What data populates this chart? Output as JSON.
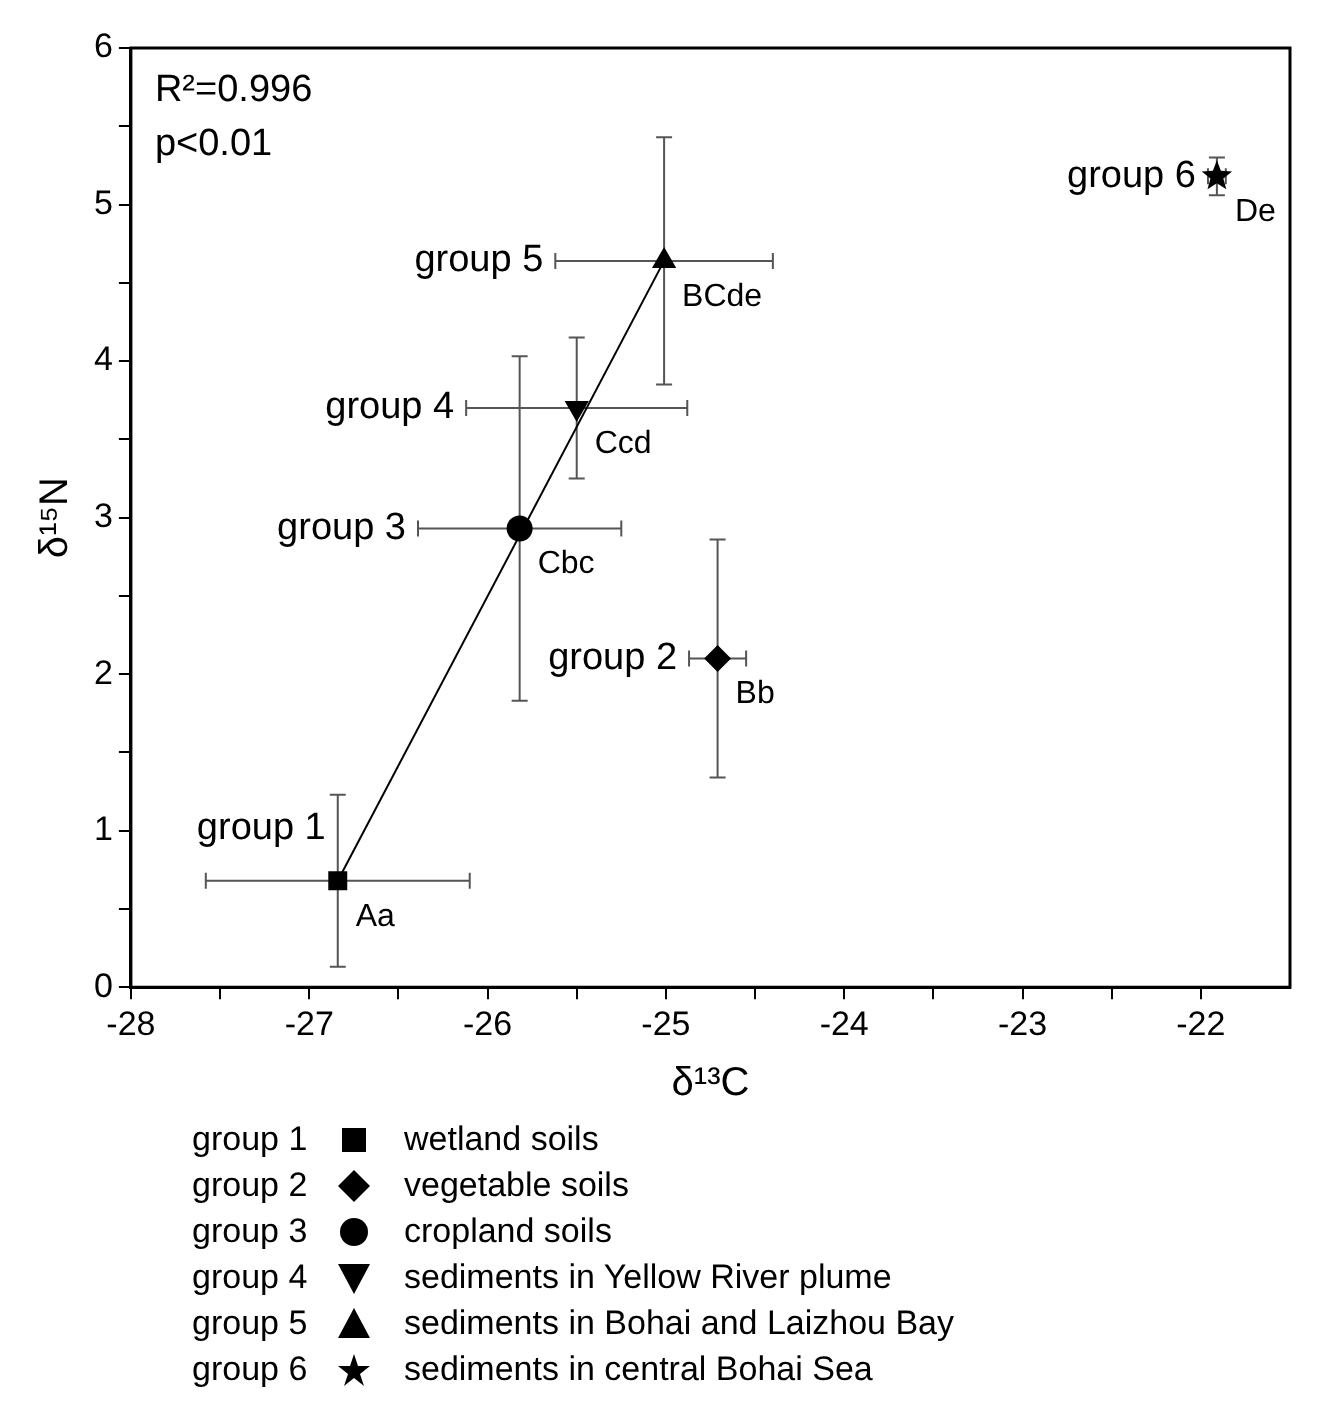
{
  "chart_data": {
    "type": "scatter",
    "xlabel": "δ¹³C",
    "ylabel": "δ¹⁵N",
    "xlim": [
      -28,
      -21.5
    ],
    "ylim": [
      0,
      6
    ],
    "xticks": [
      -28,
      {
        "value": -27.5,
        "label": null
      },
      -27,
      {
        "value": -26.5,
        "label": null
      },
      -26,
      {
        "value": -25.5,
        "label": null
      },
      -25,
      {
        "value": -24.5,
        "label": null
      },
      -24,
      {
        "value": -23.5,
        "label": null
      },
      -23,
      {
        "value": -22.5,
        "label": null
      },
      -22
    ],
    "yticks": [
      0,
      {
        "value": 0.5,
        "label": null
      },
      1,
      {
        "value": 1.5,
        "label": null
      },
      2,
      {
        "value": 2.5,
        "label": null
      },
      3,
      {
        "value": 3.5,
        "label": null
      },
      4,
      {
        "value": 4.5,
        "label": null
      },
      5,
      {
        "value": 5.5,
        "label": null
      },
      6
    ],
    "grid": false,
    "legend": "bottom",
    "series": [
      {
        "name": "group 1",
        "color": "#000000",
        "marker": "square",
        "x": [
          -26.84
        ],
        "values": [
          0.68
        ],
        "errors": [
          0.55
        ],
        "xerrors": [
          0.74
        ]
      },
      {
        "name": "group 2",
        "color": "#000000",
        "marker": "diamond",
        "x": [
          -24.71
        ],
        "values": [
          2.1
        ],
        "errors": [
          0.76
        ],
        "xerrors": [
          0.16
        ]
      },
      {
        "name": "group 3",
        "color": "#000000",
        "marker": "circle",
        "x": [
          -25.82
        ],
        "values": [
          2.93
        ],
        "errors": [
          1.1
        ],
        "xerrors": [
          0.57
        ]
      },
      {
        "name": "group 4",
        "color": "#000000",
        "marker": "triangle-down",
        "x": [
          -25.5
        ],
        "values": [
          3.7
        ],
        "errors": [
          0.45
        ],
        "xerrors": [
          0.62
        ]
      },
      {
        "name": "group 5",
        "color": "#000000",
        "marker": "triangle",
        "x": [
          -25.01
        ],
        "values": [
          4.64
        ],
        "errors": [
          0.79
        ],
        "xerrors": [
          0.61
        ]
      },
      {
        "name": "group 6",
        "color": "#000000",
        "marker": "star",
        "x": [
          -21.91
        ],
        "values": [
          5.18
        ],
        "errors": [
          0.12
        ],
        "xerrors": [
          0.05
        ]
      },
      {
        "type": "line",
        "color": "#000000",
        "marker": "none",
        "x": [
          -26.84,
          -25.01
        ],
        "values": [
          0.68,
          4.64
        ]
      }
    ],
    "annotations": [
      "R²=0.996",
      "p<0.01",
      {
        "text": "Aa",
        "x": -26.84,
        "y": 0.68
      },
      {
        "text": "Bb",
        "x": -24.71,
        "y": 2.1
      },
      {
        "text": "Cbc",
        "x": -25.82,
        "y": 2.93
      },
      {
        "text": "Ccd",
        "x": -25.5,
        "y": 3.7
      },
      {
        "text": "BCde",
        "x": -25.01,
        "y": 4.64
      },
      {
        "text": "De",
        "x": -21.91,
        "y": 5.18
      },
      "wetland soils",
      "vegetable soils",
      "cropland soils",
      "sediments in Yellow River plume",
      "sediments in Bohai and Laizhou Bay",
      "sediments in central Bohai Sea"
    ]
  }
}
